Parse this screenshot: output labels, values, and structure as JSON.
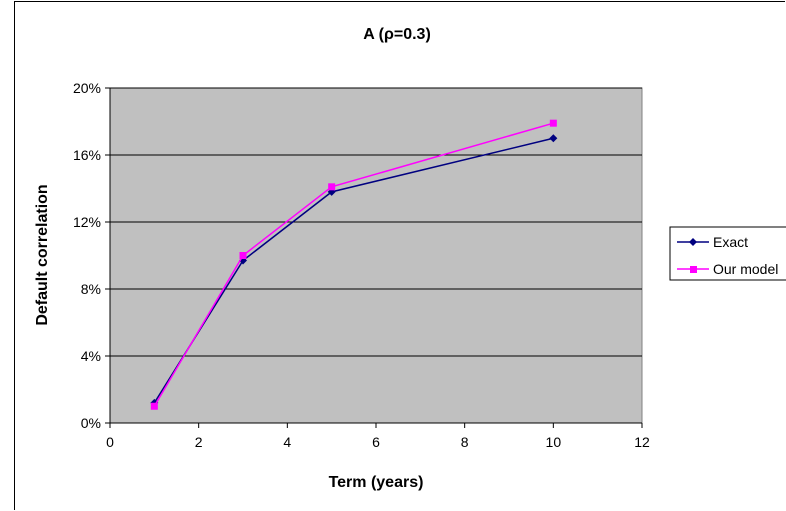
{
  "chart_data": {
    "type": "line",
    "title": "A (ρ=0.3)",
    "xlabel": "Term (years)",
    "ylabel": "Default correlation",
    "xlim": [
      0,
      12
    ],
    "ylim": [
      0,
      0.2
    ],
    "x_ticks": [
      "0",
      "2",
      "4",
      "6",
      "8",
      "10",
      "12"
    ],
    "y_ticks": [
      "0%",
      "4%",
      "8%",
      "12%",
      "16%",
      "20%"
    ],
    "x": [
      1,
      3,
      5,
      10
    ],
    "series": [
      {
        "name": "Exact",
        "values": [
          0.012,
          0.097,
          0.138,
          0.17
        ],
        "color": "#000080",
        "marker": "diamond"
      },
      {
        "name": "Our model",
        "values": [
          0.01,
          0.1,
          0.141,
          0.179
        ],
        "color": "#ff00ff",
        "marker": "square"
      }
    ],
    "plot_background": "#c0c0c0",
    "grid": true,
    "legend_position": "right"
  }
}
